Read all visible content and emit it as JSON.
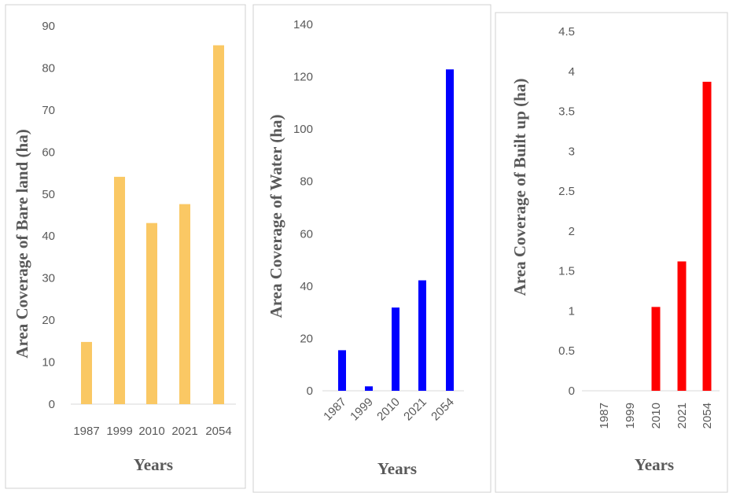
{
  "chart_data": [
    {
      "type": "bar",
      "categories": [
        "1987",
        "1999",
        "2010",
        "2021",
        "2054"
      ],
      "values": [
        14.8,
        54.1,
        43.1,
        47.6,
        85.4
      ],
      "xlabel": "Years",
      "ylabel": "Area Coverage of Bare land (ha)",
      "ylim": [
        0,
        90
      ],
      "yticks": [
        "0",
        "10",
        "20",
        "30",
        "40",
        "50",
        "60",
        "70",
        "80",
        "90"
      ],
      "color": "#FAC864",
      "grid": false,
      "legend": "none",
      "tick_rotation": 0
    },
    {
      "type": "bar",
      "categories": [
        "1987",
        "1999",
        "2010",
        "2021",
        "2054"
      ],
      "values": [
        15.5,
        1.7,
        31.8,
        42.2,
        122.8
      ],
      "xlabel": "Years",
      "ylabel": "Area Coverage of Water (ha)",
      "ylim": [
        0,
        140
      ],
      "yticks": [
        "0",
        "20",
        "40",
        "60",
        "80",
        "100",
        "120",
        "140"
      ],
      "color": "#0000FF",
      "grid": false,
      "legend": "none",
      "tick_rotation": -45
    },
    {
      "type": "bar",
      "categories": [
        "1987",
        "1999",
        "2010",
        "2021",
        "2054"
      ],
      "values": [
        0,
        0,
        1.05,
        1.62,
        3.87
      ],
      "xlabel": "Years",
      "ylabel": "Area Coverage of Built up (ha)",
      "ylim": [
        0,
        4.5
      ],
      "yticks": [
        "0",
        "0.5",
        "1",
        "1.5",
        "2",
        "2.5",
        "3",
        "3.5",
        "4",
        "4.5"
      ],
      "color": "#FF0000",
      "grid": false,
      "legend": "none",
      "tick_rotation": -90
    }
  ]
}
